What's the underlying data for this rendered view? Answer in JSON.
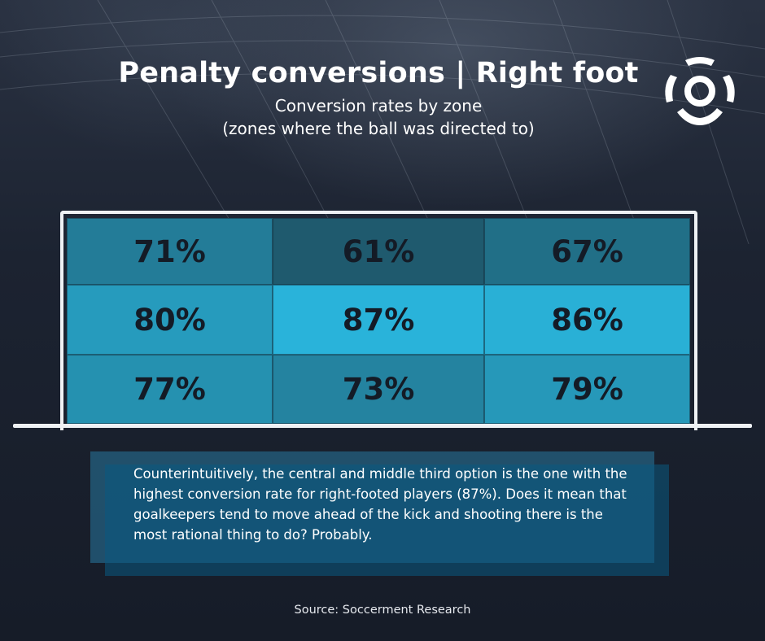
{
  "title": "Penalty conversions | Right foot",
  "subtitle_line1": "Conversion rates by zone",
  "subtitle_line2": "(zones where the ball was directed to)",
  "logo_icon": "soccerment-ball-logo",
  "colors": {
    "background": "#1b2130",
    "text": "#ffffff",
    "goal_frame": "#eef1f4",
    "label": "#141b26",
    "low": "#1f5a6e",
    "high": "#29b3da"
  },
  "chart_data": {
    "type": "heatmap",
    "title": "Penalty conversions | Right foot",
    "subtitle": "Conversion rates by zone (zones where the ball was directed to)",
    "rows": [
      "top",
      "middle",
      "bottom"
    ],
    "columns": [
      "left",
      "center",
      "right"
    ],
    "values": [
      [
        71,
        61,
        67
      ],
      [
        80,
        87,
        86
      ],
      [
        77,
        73,
        79
      ]
    ],
    "labels": [
      [
        "71%",
        "61%",
        "67%"
      ],
      [
        "80%",
        "87%",
        "86%"
      ],
      [
        "77%",
        "73%",
        "79%"
      ]
    ],
    "unit": "%"
  },
  "caption": "Counterintuitively, the central and middle third option is the one with the highest conversion rate for right-footed players (87%). Does it mean that goalkeepers tend to move ahead of the kick and shooting there is the most rational thing to do? Probably.",
  "source": "Source: Soccerment Research"
}
